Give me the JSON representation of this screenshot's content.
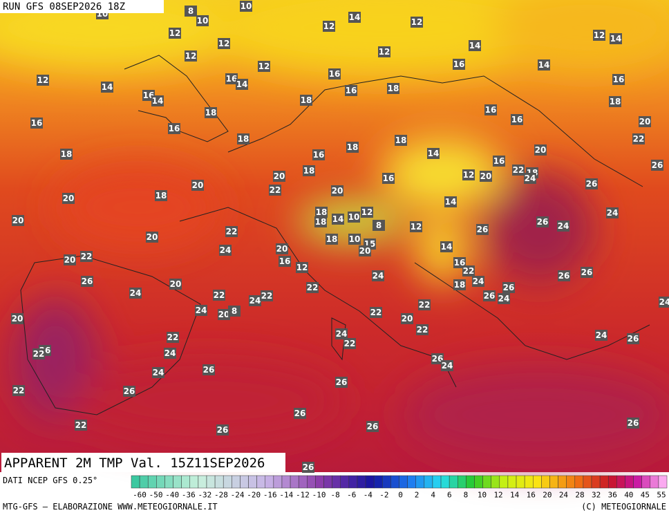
{
  "header": {
    "run": "RUN GFS 08SEP2026 18Z"
  },
  "footer": {
    "title": "APPARENT 2M TMP Val. 15Z11SEP2026",
    "source": "DATI NCEP GFS 0.25°",
    "credit": "MTG-GFS — ELABORAZIONE WWW.METEOGIORNALE.IT",
    "copyright": "(C) METEOGIORNALE"
  },
  "legend": {
    "ticks": [
      -60,
      -50,
      -40,
      -36,
      -32,
      -28,
      -24,
      -20,
      -16,
      -14,
      -12,
      -10,
      -8,
      -6,
      -4,
      -2,
      0,
      2,
      4,
      6,
      8,
      10,
      12,
      14,
      16,
      20,
      24,
      28,
      32,
      36,
      40,
      45,
      55
    ]
  },
  "map": {
    "labels": [
      10,
      10,
      8,
      10,
      12,
      14,
      12,
      12,
      12,
      14,
      12,
      12,
      12,
      14,
      12,
      16,
      14,
      16,
      12,
      14,
      16,
      14,
      16,
      14,
      16,
      18,
      16,
      18,
      18,
      16,
      18,
      16,
      16,
      18,
      16,
      20,
      22,
      18,
      18,
      18,
      14,
      16,
      20,
      16,
      18,
      22,
      18,
      20,
      16,
      12,
      20,
      24,
      26,
      20,
      22,
      20,
      26,
      18,
      20,
      14,
      18,
      12,
      24,
      20,
      18,
      14,
      10,
      8,
      12,
      26,
      26,
      24,
      22,
      20,
      18,
      10,
      15,
      14,
      20,
      24,
      20,
      20,
      22,
      16,
      16,
      12,
      22,
      26,
      26,
      24,
      20,
      24,
      26,
      18,
      26,
      22,
      24,
      26,
      22,
      22,
      24,
      24,
      24,
      20,
      8,
      22,
      22,
      24,
      20,
      20,
      22,
      24,
      22,
      24,
      26,
      22,
      26,
      22,
      24,
      26,
      24,
      24,
      26,
      26,
      22,
      26,
      26,
      22,
      26,
      26,
      26,
      26
    ]
  }
}
